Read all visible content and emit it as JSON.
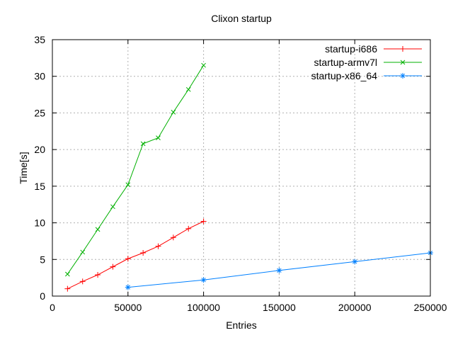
{
  "chart_data": {
    "type": "line",
    "title": "Clixon startup",
    "xlabel": "Entries",
    "ylabel": "Time[s]",
    "xlim": [
      0,
      250000
    ],
    "ylim": [
      0,
      35
    ],
    "xticks": [
      0,
      50000,
      100000,
      150000,
      200000,
      250000
    ],
    "yticks": [
      0,
      5,
      10,
      15,
      20,
      25,
      30,
      35
    ],
    "grid": true,
    "legend": {
      "position": "top-right-inside",
      "border": false
    },
    "series": [
      {
        "name": "startup-i686",
        "color": "#ff0000",
        "marker": "plus",
        "x": [
          10000,
          20000,
          30000,
          40000,
          50000,
          60000,
          70000,
          80000,
          90000,
          100000
        ],
        "y": [
          1.0,
          2.0,
          2.9,
          4.0,
          5.1,
          5.9,
          6.8,
          8.0,
          9.2,
          10.2
        ]
      },
      {
        "name": "startup-armv7l",
        "color": "#00b000",
        "marker": "cross",
        "x": [
          10000,
          20000,
          30000,
          40000,
          50000,
          60000,
          70000,
          80000,
          90000,
          100000
        ],
        "y": [
          3.0,
          6.0,
          9.1,
          12.2,
          15.2,
          20.8,
          21.6,
          25.1,
          28.2,
          31.5
        ]
      },
      {
        "name": "startup-x86_64",
        "color": "#0080ff",
        "marker": "asterisk",
        "x": [
          50000,
          100000,
          150000,
          200000,
          250000
        ],
        "y": [
          1.2,
          2.2,
          3.5,
          4.7,
          5.9
        ]
      }
    ],
    "colors": {
      "grid": "#b0b0b0",
      "border": "#000000",
      "text": "#000000",
      "background": "#ffffff"
    }
  }
}
